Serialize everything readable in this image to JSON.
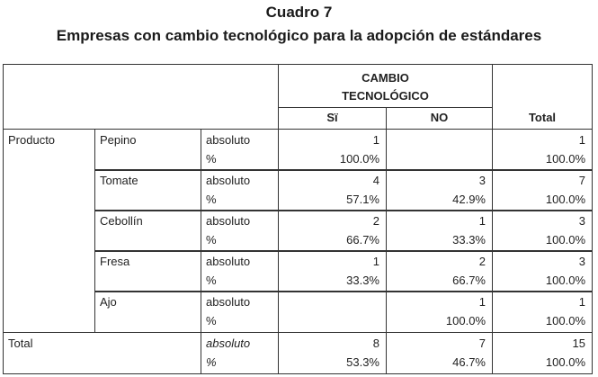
{
  "title": "Cuadro 7",
  "subtitle": "Empresas con cambio tecnológico para la adopción de estándares",
  "header": {
    "group": "CAMBIO\nTECNOLÓGICO",
    "si": "Sï",
    "no": "NO",
    "total": "Total"
  },
  "row_group_label": "Producto",
  "rows": [
    {
      "product": "Pepino",
      "abs_label": "absoluto",
      "pct_label": "%",
      "si_abs": "1",
      "si_pct": "100.0%",
      "no_abs": "",
      "no_pct": "",
      "tot_abs": "1",
      "tot_pct": "100.0%"
    },
    {
      "product": "Tomate",
      "abs_label": "absoluto",
      "pct_label": "%",
      "si_abs": "4",
      "si_pct": "57.1%",
      "no_abs": "3",
      "no_pct": "42.9%",
      "tot_abs": "7",
      "tot_pct": "100.0%"
    },
    {
      "product": "Cebollín",
      "abs_label": "absoluto",
      "pct_label": "%",
      "si_abs": "2",
      "si_pct": "66.7%",
      "no_abs": "1",
      "no_pct": "33.3%",
      "tot_abs": "3",
      "tot_pct": "100.0%"
    },
    {
      "product": "Fresa",
      "abs_label": "absoluto",
      "pct_label": "%",
      "si_abs": "1",
      "si_pct": "33.3%",
      "no_abs": "2",
      "no_pct": "66.7%",
      "tot_abs": "3",
      "tot_pct": "100.0%"
    },
    {
      "product": "Ajo",
      "abs_label": "absoluto",
      "pct_label": "%",
      "si_abs": "",
      "si_pct": "",
      "no_abs": "1",
      "no_pct": "100.0%",
      "tot_abs": "1",
      "tot_pct": "100.0%"
    }
  ],
  "total_row": {
    "label": "Total",
    "abs_label": "absoluto",
    "pct_label": "%",
    "si_abs": "8",
    "si_pct": "53.3%",
    "no_abs": "7",
    "no_pct": "46.7%",
    "tot_abs": "15",
    "tot_pct": "100.0%"
  }
}
